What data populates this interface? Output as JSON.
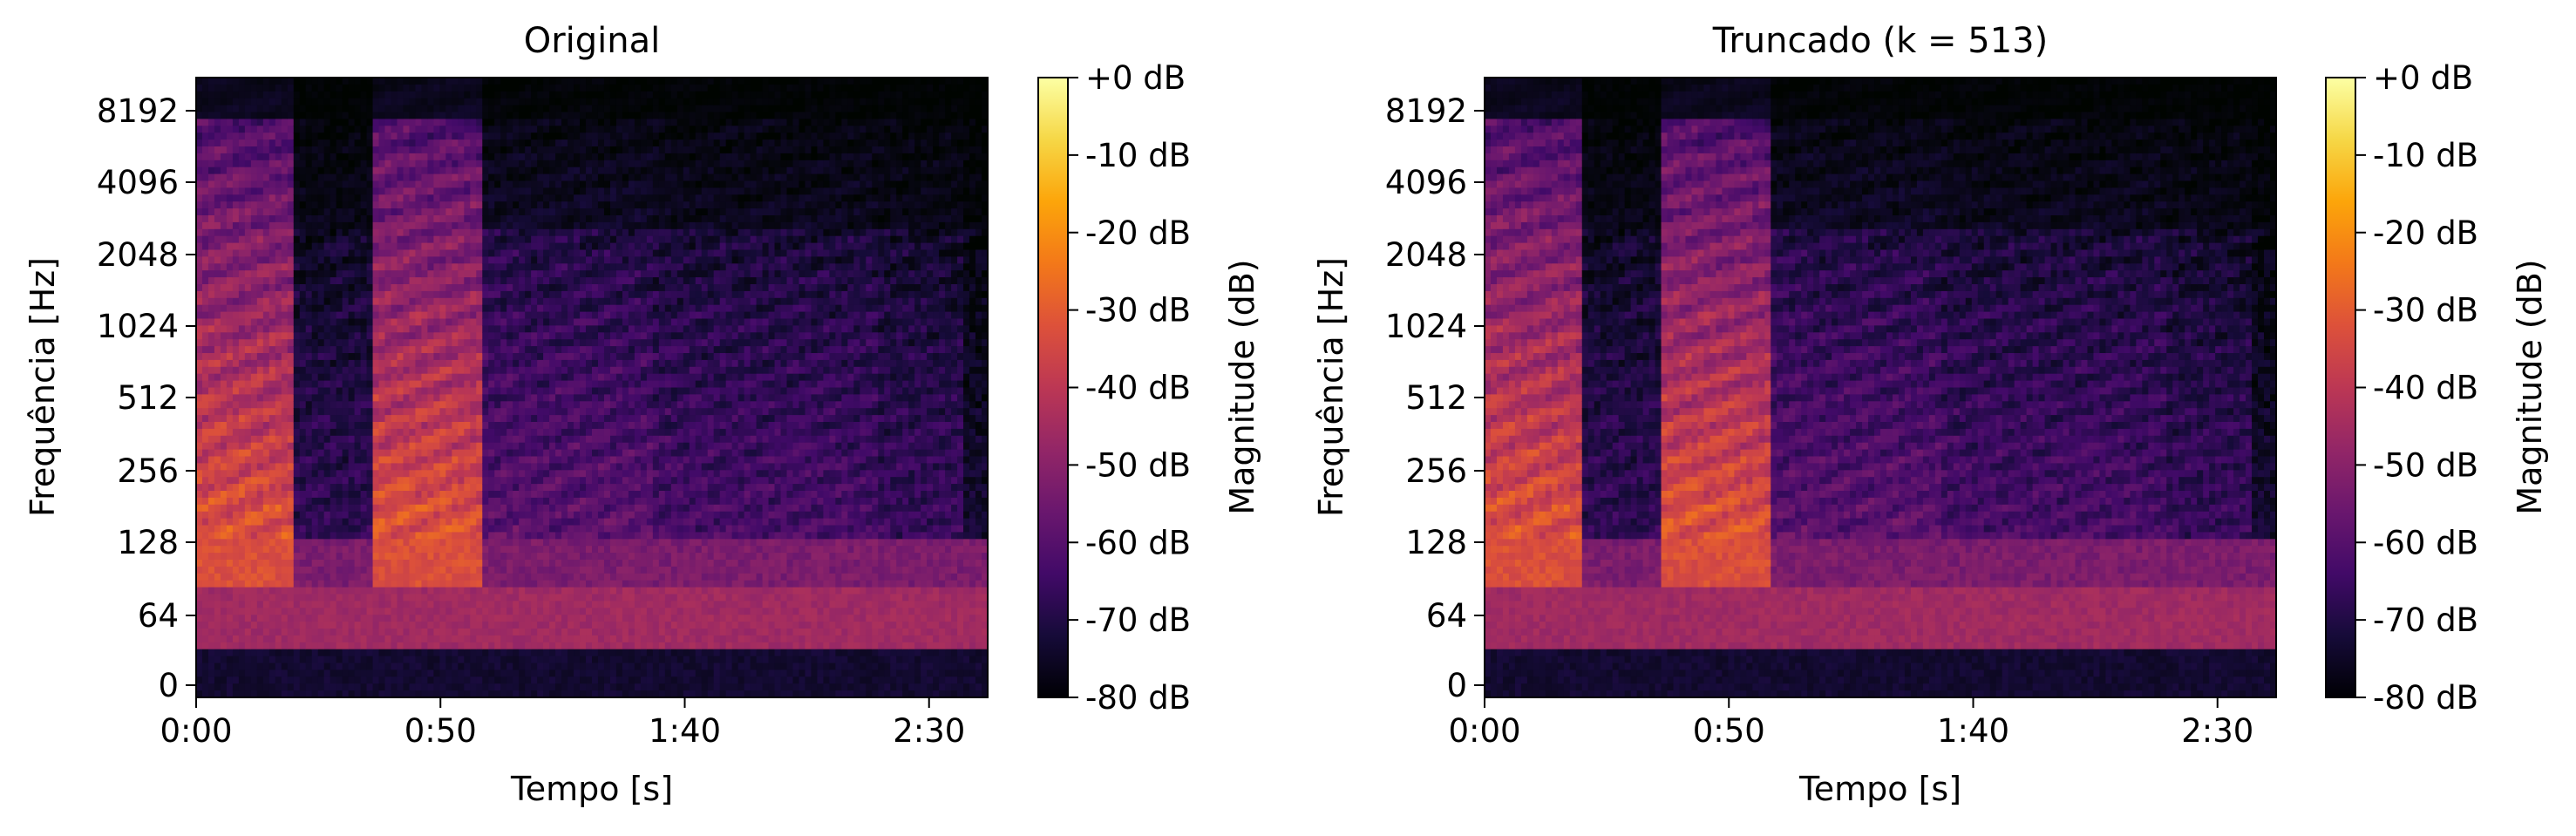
{
  "chart_data": [
    {
      "type": "heatmap",
      "title": "Original",
      "xlabel": "Tempo [s]",
      "ylabel": "Frequência [Hz]",
      "x_ticks": [
        "0:00",
        "0:50",
        "1:40",
        "2:30"
      ],
      "x_tick_values_s": [
        0,
        50,
        100,
        150
      ],
      "xlim_s": [
        0,
        162
      ],
      "y_ticks": [
        "0",
        "64",
        "128",
        "256",
        "512",
        "1024",
        "2048",
        "4096",
        "8192"
      ],
      "y_scale": "symlog",
      "colorbar": {
        "label": "Magnitude (dB)",
        "ticks": [
          "+0 dB",
          "-10 dB",
          "-20 dB",
          "-30 dB",
          "-40 dB",
          "-50 dB",
          "-60 dB",
          "-70 dB",
          "-80 dB"
        ],
        "range_db": [
          -80,
          0
        ],
        "colormap": "inferno"
      }
    },
    {
      "type": "heatmap",
      "title": "Truncado (k = 513)",
      "xlabel": "Tempo [s]",
      "ylabel": "Frequência [Hz]",
      "x_ticks": [
        "0:00",
        "0:50",
        "1:40",
        "2:30"
      ],
      "x_tick_values_s": [
        0,
        50,
        100,
        150
      ],
      "xlim_s": [
        0,
        162
      ],
      "y_ticks": [
        "0",
        "64",
        "128",
        "256",
        "512",
        "1024",
        "2048",
        "4096",
        "8192"
      ],
      "y_scale": "symlog",
      "colorbar": {
        "label": "Magnitude (dB)",
        "ticks": [
          "+0 dB",
          "-10 dB",
          "-20 dB",
          "-30 dB",
          "-40 dB",
          "-50 dB",
          "-60 dB",
          "-70 dB",
          "-80 dB"
        ],
        "range_db": [
          -80,
          0
        ],
        "colormap": "inferno"
      }
    }
  ]
}
